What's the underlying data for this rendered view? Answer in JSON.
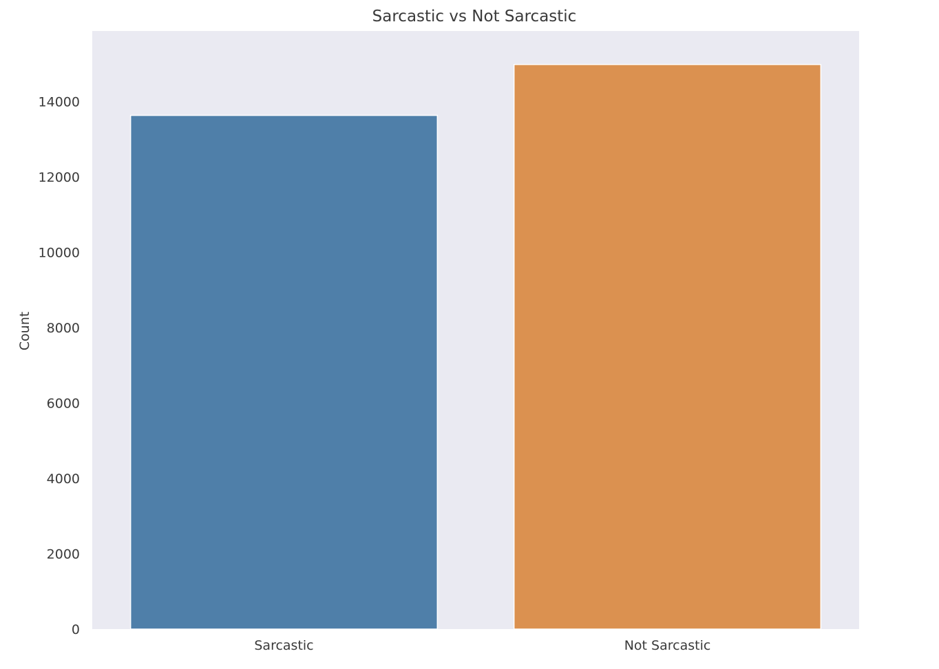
{
  "chart_data": {
    "type": "bar",
    "title": "Sarcastic vs Not Sarcastic",
    "xlabel": "",
    "ylabel": "Count",
    "categories": [
      "Sarcastic",
      "Not Sarcastic"
    ],
    "values": [
      13630,
      14980
    ],
    "bar_colors": [
      "#4f7fa9",
      "#db9150"
    ],
    "ylim": [
      0,
      15870
    ],
    "yticks": [
      0,
      2000,
      4000,
      6000,
      8000,
      10000,
      12000,
      14000
    ],
    "ytick_labels": [
      "0",
      "2000",
      "4000",
      "6000",
      "8000",
      "10000",
      "12000",
      "14000"
    ],
    "grid": false,
    "plot_background": "#eaeaf2"
  }
}
